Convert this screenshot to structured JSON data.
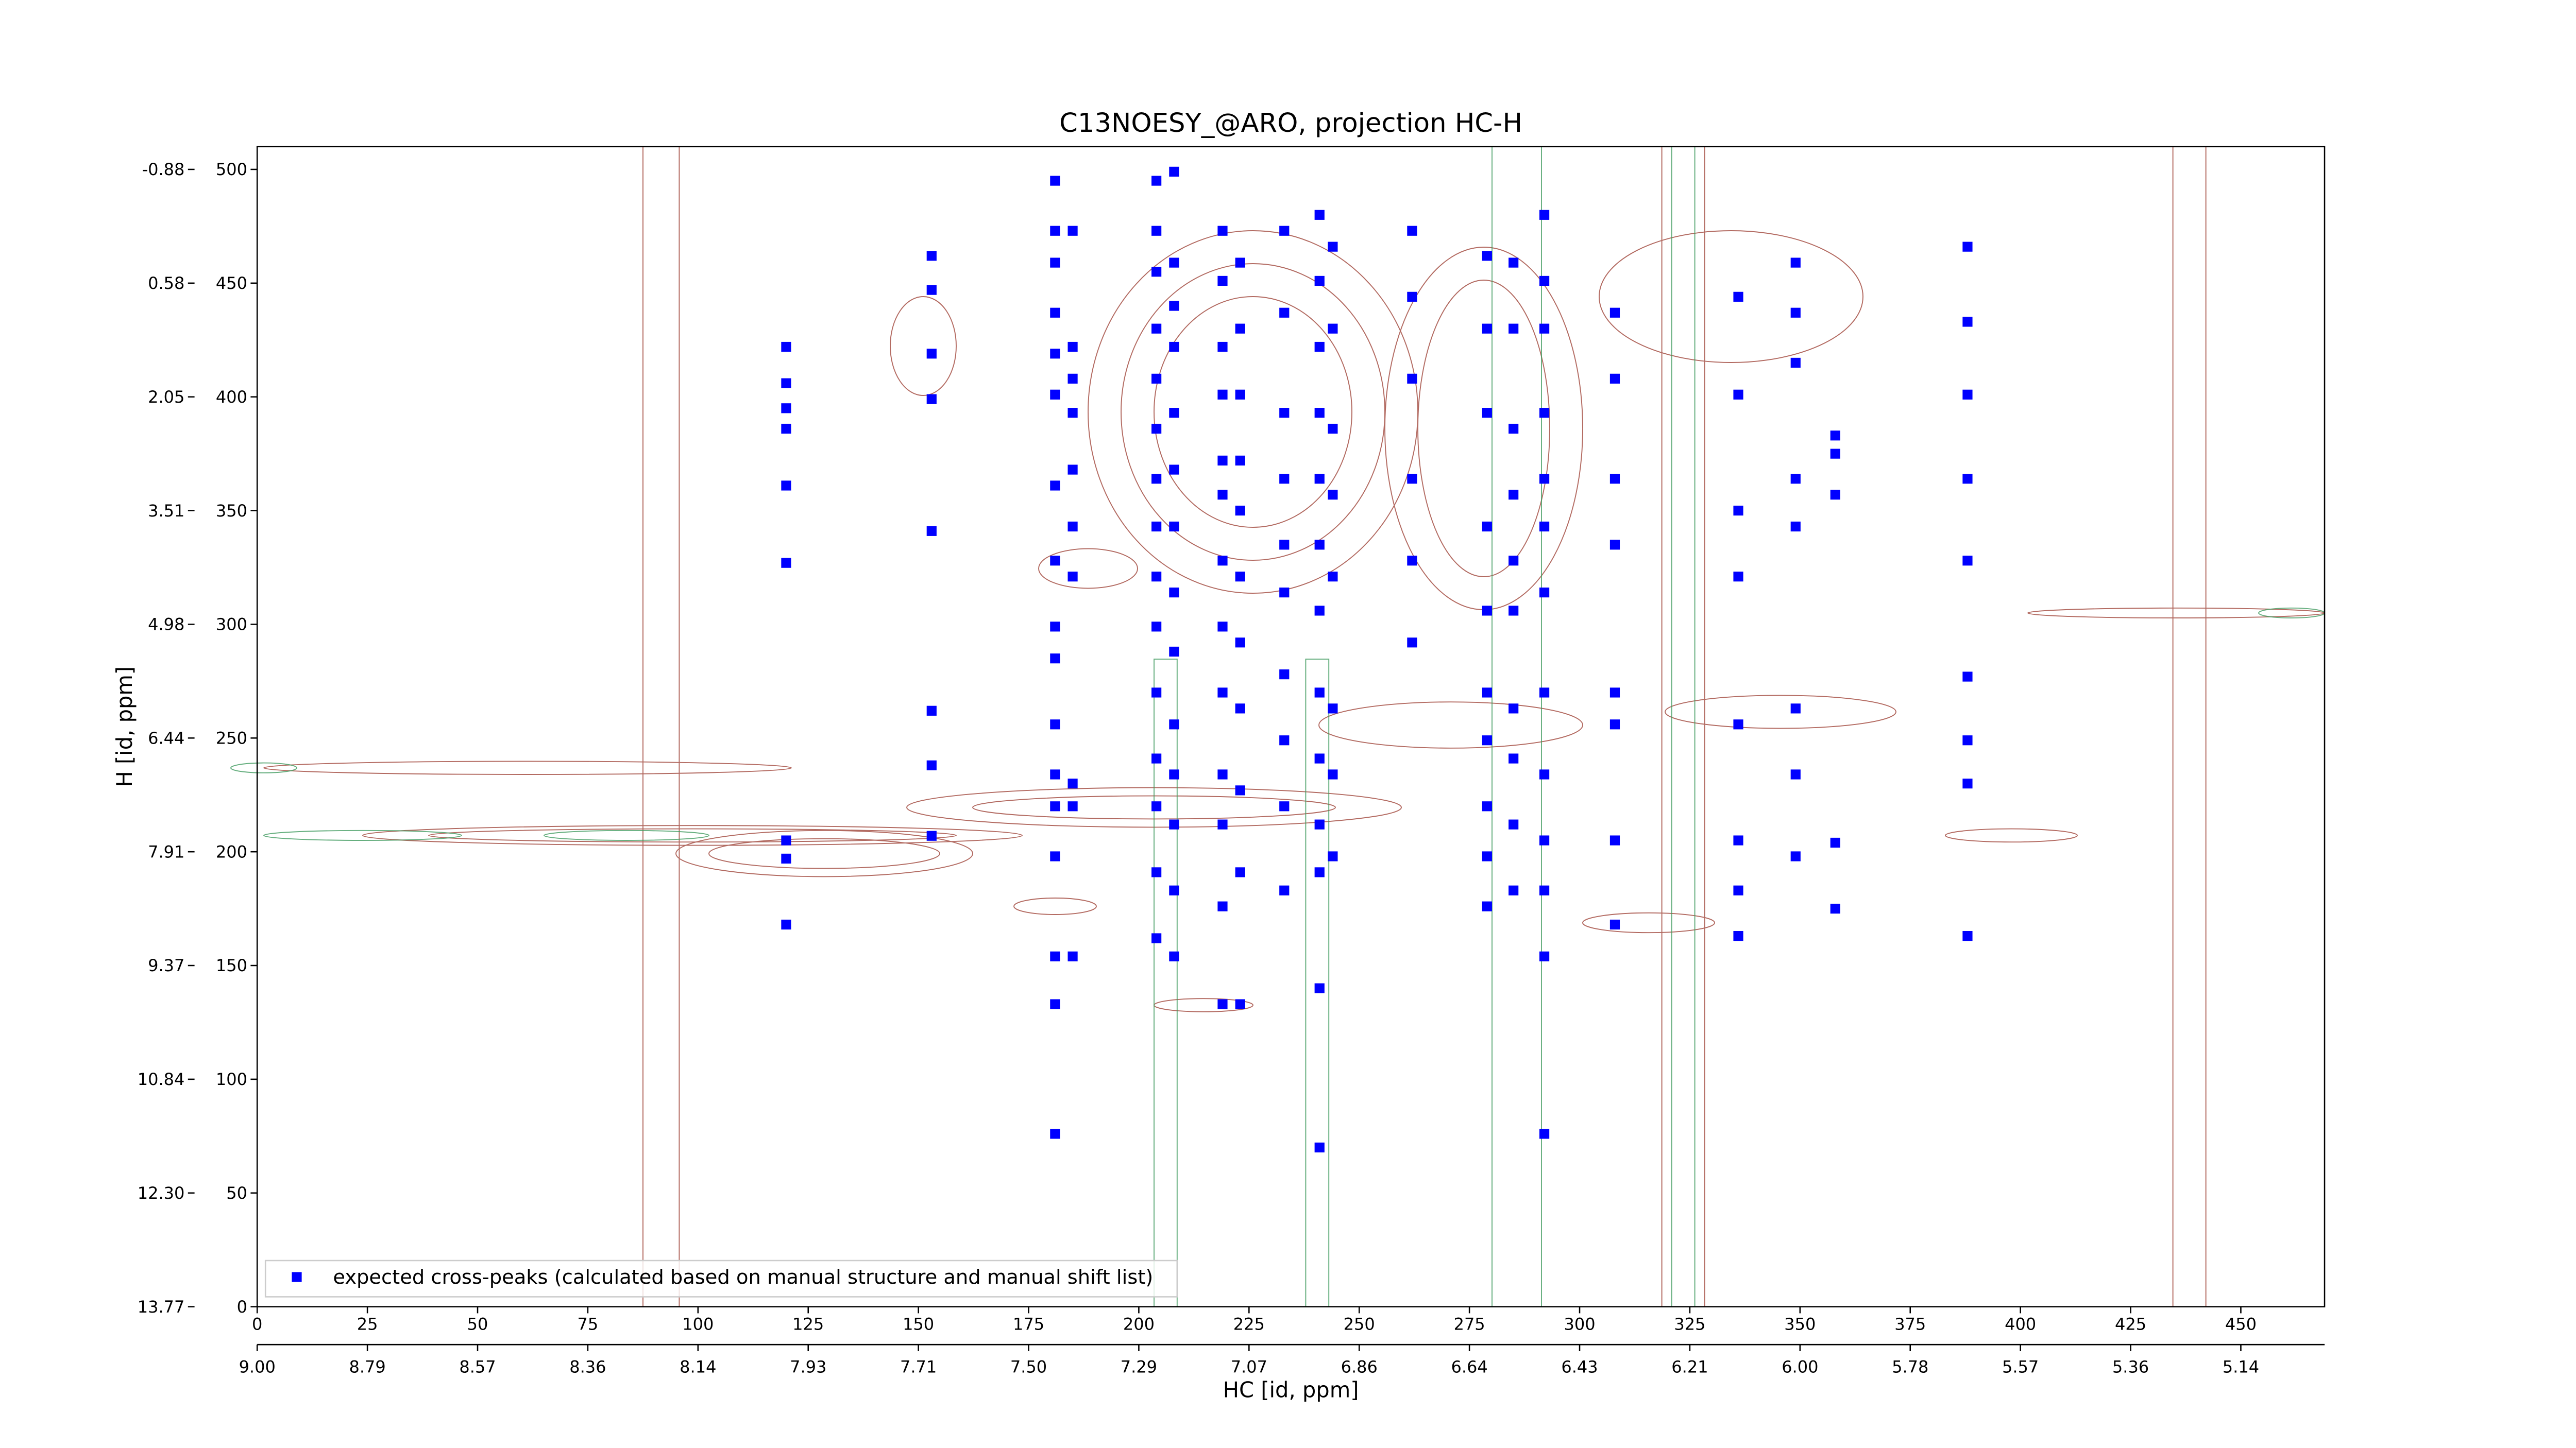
{
  "chart_data": {
    "type": "scatter",
    "title": "C13NOESY_@ARO, projection HC-H",
    "xlabel": "HC [id, ppm]",
    "ylabel": "H [id, ppm]",
    "xlim": [
      0,
      469
    ],
    "ylim": [
      0,
      510
    ],
    "xticks": [
      0,
      25,
      50,
      75,
      100,
      125,
      150,
      175,
      200,
      225,
      250,
      275,
      300,
      325,
      350,
      375,
      400,
      425,
      450
    ],
    "x_ppm_ticks": [
      {
        "value": 0,
        "label": "9.00"
      },
      {
        "value": 25,
        "label": "8.79"
      },
      {
        "value": 50,
        "label": "8.57"
      },
      {
        "value": 75,
        "label": "8.36"
      },
      {
        "value": 100,
        "label": "8.14"
      },
      {
        "value": 125,
        "label": "7.93"
      },
      {
        "value": 150,
        "label": "7.71"
      },
      {
        "value": 175,
        "label": "7.50"
      },
      {
        "value": 200,
        "label": "7.29"
      },
      {
        "value": 225,
        "label": "7.07"
      },
      {
        "value": 250,
        "label": "6.86"
      },
      {
        "value": 275,
        "label": "6.64"
      },
      {
        "value": 300,
        "label": "6.43"
      },
      {
        "value": 325,
        "label": "6.21"
      },
      {
        "value": 350,
        "label": "6.00"
      },
      {
        "value": 375,
        "label": "5.78"
      },
      {
        "value": 400,
        "label": "5.57"
      },
      {
        "value": 425,
        "label": "5.36"
      },
      {
        "value": 450,
        "label": "5.14"
      }
    ],
    "yticks": [
      0,
      50,
      100,
      150,
      200,
      250,
      300,
      350,
      400,
      450,
      500
    ],
    "y_ppm_ticks": [
      {
        "value": 0,
        "label": "13.77"
      },
      {
        "value": 50,
        "label": "12.30"
      },
      {
        "value": 100,
        "label": "10.84"
      },
      {
        "value": 150,
        "label": "9.37"
      },
      {
        "value": 200,
        "label": "7.91"
      },
      {
        "value": 250,
        "label": "6.44"
      },
      {
        "value": 300,
        "label": "4.98"
      },
      {
        "value": 350,
        "label": "3.51"
      },
      {
        "value": 400,
        "label": "2.05"
      },
      {
        "value": 450,
        "label": "0.58"
      },
      {
        "value": 500,
        "label": "-0.88"
      }
    ],
    "legend": "lower left",
    "series": [
      {
        "name": "expected cross-peaks (calculated based on manual structure and manual shift list)",
        "color": "#0000ff",
        "x": [
          120,
          120,
          120,
          120,
          120,
          120,
          120,
          120,
          120,
          153,
          153,
          153,
          153,
          153,
          153,
          153,
          153,
          181,
          181,
          181,
          181,
          181,
          181,
          181,
          181,
          181,
          181,
          181,
          181,
          181,
          181,
          181,
          181,
          181,
          185,
          185,
          185,
          185,
          185,
          185,
          185,
          185,
          185,
          185,
          204,
          204,
          204,
          204,
          204,
          204,
          204,
          204,
          204,
          204,
          204,
          204,
          204,
          204,
          204,
          208,
          208,
          208,
          208,
          208,
          208,
          208,
          208,
          208,
          208,
          208,
          208,
          208,
          208,
          219,
          219,
          219,
          219,
          219,
          219,
          219,
          219,
          219,
          219,
          219,
          219,
          219,
          223,
          223,
          223,
          223,
          223,
          223,
          223,
          223,
          223,
          223,
          223,
          233,
          233,
          233,
          233,
          233,
          233,
          233,
          233,
          233,
          233,
          241,
          241,
          241,
          241,
          241,
          241,
          241,
          241,
          241,
          241,
          241,
          241,
          241,
          244,
          244,
          244,
          244,
          244,
          244,
          244,
          244,
          262,
          262,
          262,
          262,
          262,
          262,
          279,
          279,
          279,
          279,
          279,
          279,
          279,
          279,
          279,
          279,
          285,
          285,
          285,
          285,
          285,
          285,
          285,
          285,
          285,
          285,
          292,
          292,
          292,
          292,
          292,
          292,
          292,
          292,
          292,
          292,
          292,
          292,
          292,
          308,
          308,
          308,
          308,
          308,
          308,
          308,
          308,
          336,
          336,
          336,
          336,
          336,
          336,
          336,
          336,
          349,
          349,
          349,
          349,
          349,
          349,
          349,
          349,
          358,
          358,
          358,
          358,
          358,
          388,
          388,
          388,
          388,
          388,
          388,
          388,
          388,
          388
        ],
        "values": [
          422,
          406,
          395,
          386,
          361,
          327,
          205,
          197,
          168,
          462,
          447,
          419,
          399,
          341,
          262,
          238,
          207,
          495,
          473,
          459,
          437,
          419,
          401,
          361,
          328,
          299,
          285,
          256,
          234,
          220,
          198,
          154,
          133,
          76,
          473,
          422,
          408,
          393,
          368,
          343,
          321,
          230,
          220,
          154,
          495,
          473,
          455,
          430,
          408,
          386,
          364,
          343,
          321,
          299,
          270,
          241,
          220,
          191,
          162,
          499,
          459,
          440,
          422,
          393,
          368,
          343,
          314,
          288,
          256,
          234,
          212,
          183,
          154,
          473,
          451,
          422,
          401,
          372,
          357,
          328,
          299,
          270,
          234,
          212,
          176,
          133,
          459,
          430,
          401,
          372,
          350,
          321,
          292,
          263,
          227,
          191,
          133,
          473,
          437,
          393,
          364,
          335,
          314,
          278,
          249,
          220,
          183,
          480,
          451,
          422,
          393,
          364,
          335,
          306,
          270,
          241,
          212,
          191,
          140,
          70,
          466,
          430,
          386,
          357,
          321,
          263,
          234,
          198,
          473,
          444,
          408,
          364,
          328,
          292,
          462,
          430,
          393,
          343,
          306,
          270,
          249,
          220,
          198,
          176,
          459,
          430,
          386,
          357,
          328,
          306,
          263,
          241,
          212,
          183,
          480,
          451,
          430,
          393,
          364,
          343,
          314,
          270,
          234,
          205,
          183,
          154,
          76,
          437,
          408,
          364,
          335,
          270,
          256,
          205,
          168,
          444,
          401,
          350,
          321,
          256,
          205,
          183,
          163,
          459,
          437,
          415,
          364,
          343,
          263,
          234,
          198,
          383,
          375,
          357,
          204,
          175,
          466,
          433,
          401,
          364,
          328,
          277,
          249,
          230,
          163
        ]
      }
    ]
  }
}
